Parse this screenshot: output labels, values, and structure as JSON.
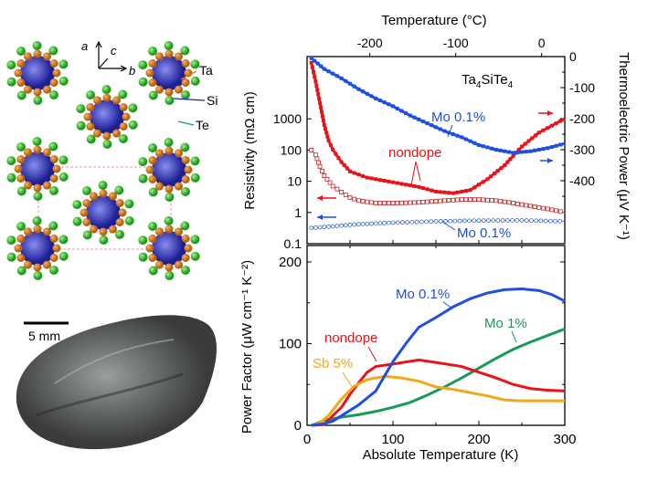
{
  "structure": {
    "axes": {
      "a": "a",
      "b": "b",
      "c": "c"
    },
    "atoms": [
      {
        "label": "Ta",
        "color": "#d9801e"
      },
      {
        "label": "Si",
        "color": "#2a2fa8"
      },
      {
        "label": "Te",
        "color": "#2fbf2f"
      }
    ]
  },
  "photo": {
    "scale_bar": "5 mm"
  },
  "chart_data": [
    {
      "type": "line",
      "panel": "top",
      "title": "",
      "annotation": "Ta4SiTe4",
      "xlabel_top": "Temperature  (°C)",
      "xticks_top": [
        "-200",
        "-100",
        "0"
      ],
      "xticks_top_values_C": [
        -200,
        -100,
        0
      ],
      "xlim": [
        0,
        300
      ],
      "ylabel_left": "Resistivity (mΩ cm)",
      "yscale_left": "log",
      "ylim_left": [
        0.1,
        100000
      ],
      "yticks_left": [
        "0.1",
        "1",
        "10",
        "100",
        "1000"
      ],
      "ylabel_right": "Thermoelectric Power (μV K⁻¹)",
      "ylim_right": [
        -600,
        0
      ],
      "yticks_right": [
        "0",
        "-100",
        "-200",
        "-300",
        "-400"
      ],
      "series": [
        {
          "name": "nondope",
          "quantity": "thermopower",
          "axis": "right",
          "marker": "filled-square",
          "color": "#e8141b",
          "x": [
            5,
            10,
            15,
            20,
            25,
            30,
            40,
            50,
            70,
            100,
            130,
            150,
            170,
            190,
            210,
            230,
            250,
            270,
            290,
            300
          ],
          "y": [
            -20,
            -80,
            -150,
            -220,
            -270,
            -300,
            -340,
            -370,
            -390,
            -405,
            -420,
            -435,
            -440,
            -430,
            -395,
            -350,
            -290,
            -245,
            -215,
            -200
          ]
        },
        {
          "name": "Mo 0.1%",
          "quantity": "thermopower",
          "axis": "right",
          "marker": "filled-circle",
          "color": "#1f4fe0",
          "x": [
            5,
            20,
            40,
            60,
            80,
            100,
            120,
            140,
            160,
            180,
            200,
            220,
            240,
            260,
            280,
            300
          ],
          "y": [
            -5,
            -40,
            -70,
            -105,
            -135,
            -160,
            -190,
            -215,
            -240,
            -260,
            -285,
            -300,
            -310,
            -305,
            -295,
            -280
          ]
        },
        {
          "name": "nondope",
          "quantity": "resistivity",
          "axis": "left",
          "marker": "open-square",
          "color": "#c0282d",
          "x": [
            5,
            10,
            15,
            20,
            30,
            40,
            50,
            60,
            80,
            100,
            130,
            160,
            180,
            200,
            220,
            240,
            260,
            280,
            300
          ],
          "y": [
            100,
            70,
            30,
            15,
            7,
            4.5,
            3,
            2.4,
            2.0,
            2.0,
            2.1,
            2.4,
            2.6,
            2.6,
            2.4,
            2.0,
            1.6,
            1.3,
            1.0
          ]
        },
        {
          "name": "Mo 0.1%",
          "quantity": "resistivity",
          "axis": "left",
          "marker": "open-circle",
          "color": "#3a6ad0",
          "x": [
            5,
            30,
            60,
            100,
            150,
            200,
            250,
            300
          ],
          "y": [
            0.32,
            0.36,
            0.42,
            0.47,
            0.52,
            0.55,
            0.56,
            0.52
          ]
        }
      ],
      "labels": [
        "Mo 0.1%",
        "nondope",
        "Mo 0.1%"
      ]
    },
    {
      "type": "line",
      "panel": "bottom",
      "title": "",
      "xlabel": "Absolute Temperature  (K)",
      "xlim": [
        0,
        300
      ],
      "xticks": [
        "0",
        "100",
        "200",
        "300"
      ],
      "ylabel": "Power Factor (μW cm⁻¹ K⁻²)",
      "ylim": [
        0,
        220
      ],
      "yticks": [
        "0",
        "100",
        "200"
      ],
      "series": [
        {
          "name": "Mo 0.1%",
          "color": "#1f4fe0",
          "x": [
            5,
            20,
            30,
            45,
            60,
            80,
            100,
            115,
            130,
            150,
            170,
            190,
            210,
            230,
            250,
            270,
            285,
            300
          ],
          "y": [
            0,
            2,
            5,
            15,
            25,
            42,
            78,
            100,
            120,
            132,
            145,
            155,
            162,
            166,
            167,
            165,
            160,
            152
          ]
        },
        {
          "name": "nondope",
          "color": "#e8141b",
          "x": [
            5,
            20,
            30,
            40,
            50,
            60,
            70,
            80,
            100,
            130,
            150,
            180,
            200,
            220,
            240,
            260,
            280,
            300
          ],
          "y": [
            0,
            1,
            12,
            22,
            38,
            52,
            65,
            72,
            75,
            80,
            77,
            72,
            65,
            58,
            50,
            45,
            43,
            42
          ]
        },
        {
          "name": "Sb 5%",
          "color": "#f2a81a",
          "x": [
            5,
            15,
            25,
            40,
            55,
            70,
            90,
            110,
            130,
            150,
            170,
            190,
            210,
            230,
            250,
            270,
            300
          ],
          "y": [
            0,
            3,
            12,
            32,
            48,
            56,
            60,
            58,
            54,
            47,
            44,
            40,
            36,
            31,
            30,
            30,
            30
          ]
        },
        {
          "name": "Mo 1%",
          "color": "#1a9a5a",
          "x": [
            5,
            20,
            40,
            60,
            80,
            100,
            120,
            140,
            160,
            180,
            200,
            220,
            240,
            260,
            280,
            300
          ],
          "y": [
            0,
            6,
            10,
            13,
            17,
            22,
            28,
            37,
            47,
            58,
            70,
            82,
            93,
            102,
            110,
            118
          ]
        }
      ]
    }
  ]
}
